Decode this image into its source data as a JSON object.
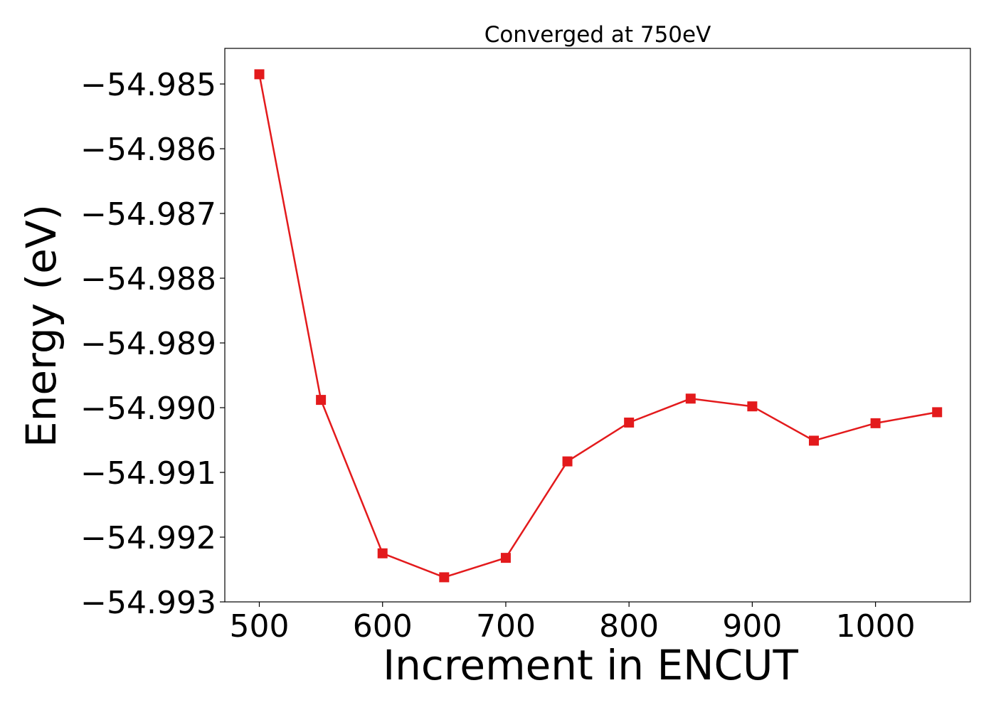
{
  "chart_data": {
    "type": "line",
    "title": "Converged at 750eV",
    "xlabel": "Increment in ENCUT",
    "ylabel": "Energy (eV)",
    "xlim": [
      472,
      1077
    ],
    "ylim": [
      -54.993,
      -54.98445
    ],
    "xticks": [
      500,
      600,
      700,
      800,
      900,
      1000
    ],
    "xtick_labels": [
      "500",
      "600",
      "700",
      "800",
      "900",
      "1000"
    ],
    "yticks": [
      -54.985,
      -54.986,
      -54.987,
      -54.988,
      -54.989,
      -54.99,
      -54.991,
      -54.992,
      -54.993
    ],
    "ytick_labels": [
      "−54.985",
      "−54.986",
      "−54.987",
      "−54.988",
      "−54.989",
      "−54.990",
      "−54.991",
      "−54.992",
      "−54.993"
    ],
    "grid": false,
    "legend": "none",
    "marker": "square",
    "color": "#e31a1c",
    "x": [
      500,
      550,
      600,
      650,
      700,
      750,
      800,
      850,
      900,
      950,
      1000,
      1050
    ],
    "series": [
      {
        "values": [
          -54.98485,
          -54.98988,
          -54.99225,
          -54.99262,
          -54.99232,
          -54.99083,
          -54.99023,
          -54.98986,
          -54.98998,
          -54.99051,
          -54.99024,
          -54.99007
        ]
      }
    ]
  }
}
